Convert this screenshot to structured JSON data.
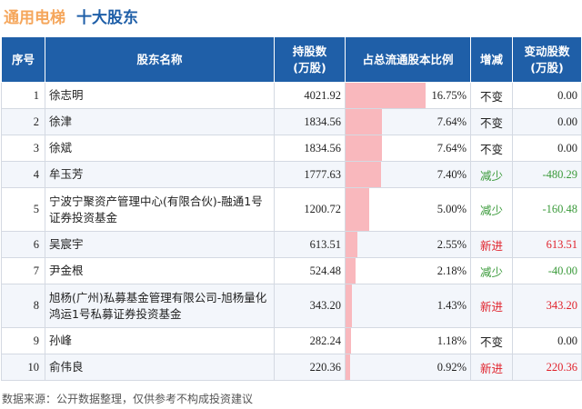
{
  "header": {
    "company": "通用电梯",
    "subtitle": "十大股东"
  },
  "table": {
    "columns": [
      "序号",
      "股东名称",
      "持股数\n(万股)",
      "占总流通股本比例",
      "增减",
      "变动股数\n(万股)"
    ],
    "max_ratio": 16.75,
    "rows": [
      {
        "idx": "1",
        "name": "徐志明",
        "shares": "4021.92",
        "ratio": "16.75%",
        "ratio_value": 16.75,
        "change": "不变",
        "change_type": "same",
        "delta": "0.00"
      },
      {
        "idx": "2",
        "name": "徐津",
        "shares": "1834.56",
        "ratio": "7.64%",
        "ratio_value": 7.64,
        "change": "不变",
        "change_type": "same",
        "delta": "0.00"
      },
      {
        "idx": "3",
        "name": "徐斌",
        "shares": "1834.56",
        "ratio": "7.64%",
        "ratio_value": 7.64,
        "change": "不变",
        "change_type": "same",
        "delta": "0.00"
      },
      {
        "idx": "4",
        "name": "牟玉芳",
        "shares": "1777.63",
        "ratio": "7.40%",
        "ratio_value": 7.4,
        "change": "减少",
        "change_type": "down",
        "delta": "-480.29"
      },
      {
        "idx": "5",
        "name": "宁波宁聚资产管理中心(有限合伙)-融通1号证券投资基金",
        "shares": "1200.72",
        "ratio": "5.00%",
        "ratio_value": 5.0,
        "change": "减少",
        "change_type": "down",
        "delta": "-160.48"
      },
      {
        "idx": "6",
        "name": "吴宸宇",
        "shares": "613.51",
        "ratio": "2.55%",
        "ratio_value": 2.55,
        "change": "新进",
        "change_type": "new",
        "delta": "613.51"
      },
      {
        "idx": "7",
        "name": "尹金根",
        "shares": "524.48",
        "ratio": "2.18%",
        "ratio_value": 2.18,
        "change": "减少",
        "change_type": "down",
        "delta": "-40.00"
      },
      {
        "idx": "8",
        "name": "旭杨(广州)私募基金管理有限公司-旭杨量化鸿运1号私募证券投资基金",
        "shares": "343.20",
        "ratio": "1.43%",
        "ratio_value": 1.43,
        "change": "新进",
        "change_type": "new",
        "delta": "343.20"
      },
      {
        "idx": "9",
        "name": "孙峰",
        "shares": "282.24",
        "ratio": "1.18%",
        "ratio_value": 1.18,
        "change": "不变",
        "change_type": "same",
        "delta": "0.00"
      },
      {
        "idx": "10",
        "name": "俞伟良",
        "shares": "220.36",
        "ratio": "0.92%",
        "ratio_value": 0.92,
        "change": "新进",
        "change_type": "new",
        "delta": "220.36"
      }
    ]
  },
  "footer": {
    "source": "数据来源：公开数据整理，仅供参考不构成投资建议"
  },
  "colors": {
    "header_bg": "#1f5fa8",
    "bar": "#f9b8bd",
    "down": "#3a9a3a",
    "new": "#e0212b",
    "title_company": "#f5a65b"
  }
}
